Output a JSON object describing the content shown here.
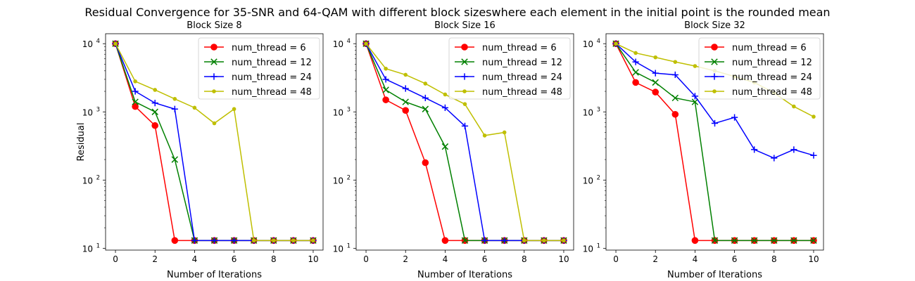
{
  "figure": {
    "title": "Residual Convergence for 35-SNR and 64-QAM with different block sizeswhere each element in the initial point is the rounded mean"
  },
  "chart_data": [
    {
      "type": "line",
      "title": "Block Size 8",
      "xlabel": "Number of Iterations",
      "ylabel": "Residual",
      "yscale": "log",
      "xlim": [
        -0.5,
        10.5
      ],
      "ylim": [
        9.4,
        14000
      ],
      "xticks": [
        "0",
        "2",
        "4",
        "6",
        "8",
        "10"
      ],
      "yticks": [
        {
          "value": 10,
          "base": "10",
          "exp": "1"
        },
        {
          "value": 100,
          "base": "10",
          "exp": "2"
        },
        {
          "value": 1000,
          "base": "10",
          "exp": "3"
        },
        {
          "value": 10000,
          "base": "10",
          "exp": "4"
        }
      ],
      "grid": false,
      "legend": "top-right",
      "x": [
        0,
        1,
        2,
        3,
        4,
        5,
        6,
        7,
        8,
        9,
        10
      ],
      "series": [
        {
          "name": "num_thread = 6",
          "color": "#ff0000",
          "marker": "circle",
          "values": [
            10000,
            1200,
            630,
            13,
            13,
            13,
            13,
            13,
            13,
            13,
            13
          ]
        },
        {
          "name": "num_thread = 12",
          "color": "#008000",
          "marker": "x",
          "values": [
            10000,
            1400,
            1000,
            200,
            13,
            13,
            13,
            13,
            13,
            13,
            13
          ]
        },
        {
          "name": "num_thread = 24",
          "color": "#0000ff",
          "marker": "plus",
          "values": [
            10000,
            2000,
            1350,
            1100,
            13,
            13,
            13,
            13,
            13,
            13,
            13
          ]
        },
        {
          "name": "num_thread = 48",
          "color": "#bfbf00",
          "marker": "point",
          "values": [
            10000,
            2800,
            2100,
            1550,
            1150,
            680,
            1100,
            13,
            13,
            13,
            13
          ]
        }
      ]
    },
    {
      "type": "line",
      "title": "Block Size 16",
      "xlabel": "Number of Iterations",
      "ylabel": "",
      "yscale": "log",
      "xlim": [
        -0.5,
        10.5
      ],
      "ylim": [
        9.4,
        14000
      ],
      "xticks": [
        "0",
        "2",
        "4",
        "6",
        "8",
        "10"
      ],
      "yticks": [
        {
          "value": 10,
          "base": "10",
          "exp": "1"
        },
        {
          "value": 100,
          "base": "10",
          "exp": "2"
        },
        {
          "value": 1000,
          "base": "10",
          "exp": "3"
        },
        {
          "value": 10000,
          "base": "10",
          "exp": "4"
        }
      ],
      "grid": false,
      "legend": "top-right",
      "x": [
        0,
        1,
        2,
        3,
        4,
        5,
        6,
        7,
        8,
        9,
        10
      ],
      "series": [
        {
          "name": "num_thread = 6",
          "color": "#ff0000",
          "marker": "circle",
          "values": [
            10000,
            1500,
            1050,
            180,
            13,
            13,
            13,
            13,
            13,
            13,
            13
          ]
        },
        {
          "name": "num_thread = 12",
          "color": "#008000",
          "marker": "x",
          "values": [
            10000,
            2100,
            1400,
            1100,
            310,
            13,
            13,
            13,
            13,
            13,
            13
          ]
        },
        {
          "name": "num_thread = 24",
          "color": "#0000ff",
          "marker": "plus",
          "values": [
            10000,
            3000,
            2200,
            1600,
            1150,
            620,
            13,
            13,
            13,
            13,
            13
          ]
        },
        {
          "name": "num_thread = 48",
          "color": "#bfbf00",
          "marker": "point",
          "values": [
            10000,
            4300,
            3500,
            2600,
            1800,
            1300,
            450,
            500,
            13,
            13,
            13
          ]
        }
      ]
    },
    {
      "type": "line",
      "title": "Block Size 32",
      "xlabel": "Number of Iterations",
      "ylabel": "",
      "yscale": "log",
      "xlim": [
        -0.5,
        10.5
      ],
      "ylim": [
        9.4,
        14000
      ],
      "xticks": [
        "0",
        "2",
        "4",
        "6",
        "8",
        "10"
      ],
      "yticks": [
        {
          "value": 10,
          "base": "10",
          "exp": "1"
        },
        {
          "value": 100,
          "base": "10",
          "exp": "2"
        },
        {
          "value": 1000,
          "base": "10",
          "exp": "3"
        },
        {
          "value": 10000,
          "base": "10",
          "exp": "4"
        }
      ],
      "grid": false,
      "legend": "top-right",
      "x": [
        0,
        1,
        2,
        3,
        4,
        5,
        6,
        7,
        8,
        9,
        10
      ],
      "series": [
        {
          "name": "num_thread = 6",
          "color": "#ff0000",
          "marker": "circle",
          "values": [
            10000,
            2700,
            1950,
            920,
            13,
            13,
            13,
            13,
            13,
            13,
            13
          ]
        },
        {
          "name": "num_thread = 12",
          "color": "#008000",
          "marker": "x",
          "values": [
            10000,
            3800,
            2700,
            1600,
            1400,
            13,
            13,
            13,
            13,
            13,
            13
          ]
        },
        {
          "name": "num_thread = 24",
          "color": "#0000ff",
          "marker": "plus",
          "values": [
            10000,
            5400,
            3700,
            3500,
            1700,
            680,
            830,
            280,
            210,
            280,
            230
          ]
        },
        {
          "name": "num_thread = 48",
          "color": "#bfbf00",
          "marker": "point",
          "values": [
            10000,
            7300,
            6300,
            5400,
            4700,
            4000,
            3300,
            2700,
            1900,
            1200,
            850
          ]
        }
      ]
    }
  ]
}
